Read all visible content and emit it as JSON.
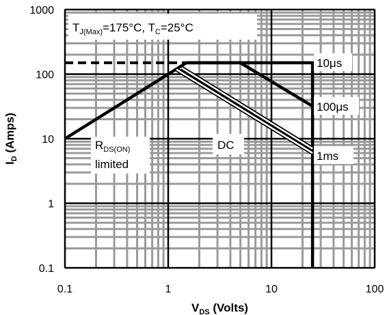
{
  "chart_data": {
    "type": "line",
    "title": "",
    "x_scale": "log",
    "y_scale": "log",
    "xlim": [
      0.1,
      100
    ],
    "ylim": [
      0.1,
      1000
    ],
    "grid": true,
    "xlabel": {
      "main": "V",
      "sub": "DS",
      "rest": " (Volts)"
    },
    "ylabel": {
      "main": "I",
      "sub": "D",
      "rest": " (Amps)"
    },
    "x_ticks": [
      {
        "value": 0.1,
        "label": "0.1"
      },
      {
        "value": 1,
        "label": "1"
      },
      {
        "value": 10,
        "label": "10"
      },
      {
        "value": 100,
        "label": "100"
      }
    ],
    "y_ticks": [
      {
        "value": 0.1,
        "label": "0.1"
      },
      {
        "value": 1,
        "label": "1"
      },
      {
        "value": 10,
        "label": "10"
      },
      {
        "value": 100,
        "label": "100"
      },
      {
        "value": 1000,
        "label": "1000"
      }
    ],
    "conditions": {
      "tj_main": "T",
      "tj_sub": "J(Max)",
      "tj_value": "=175°C, T",
      "tc_sub": "C",
      "tc_value": "=25°C"
    },
    "series": [
      {
        "key": "pkg",
        "style": "dashed",
        "points": [
          [
            0.1,
            150
          ],
          [
            1.5,
            150
          ]
        ]
      },
      {
        "key": "rdson",
        "style": "thick",
        "points": [
          [
            0.1,
            10
          ],
          [
            1.2,
            120
          ]
        ]
      },
      {
        "key": "10us",
        "style": "thick",
        "points": [
          [
            1.5,
            150
          ],
          [
            25,
            150
          ],
          [
            25,
            0.1
          ]
        ]
      },
      {
        "key": "100us",
        "style": "thick",
        "points": [
          [
            1.2,
            120
          ],
          [
            1.5,
            150
          ],
          [
            5,
            150
          ],
          [
            25,
            32
          ]
        ]
      },
      {
        "key": "1ms",
        "style": "double",
        "points": [
          [
            1.35,
            125
          ],
          [
            25,
            7
          ]
        ]
      },
      {
        "key": "dc",
        "style": "double",
        "points": [
          [
            1.2,
            118
          ],
          [
            25,
            6
          ]
        ]
      }
    ],
    "annotations": {
      "label_10us": "10μs",
      "label_100us": "100μs",
      "label_1ms": "1ms",
      "label_dc": "DC",
      "label_rdson_main": "R",
      "label_rdson_sub": "DS(ON)",
      "label_rdson_line2": "limited"
    }
  }
}
